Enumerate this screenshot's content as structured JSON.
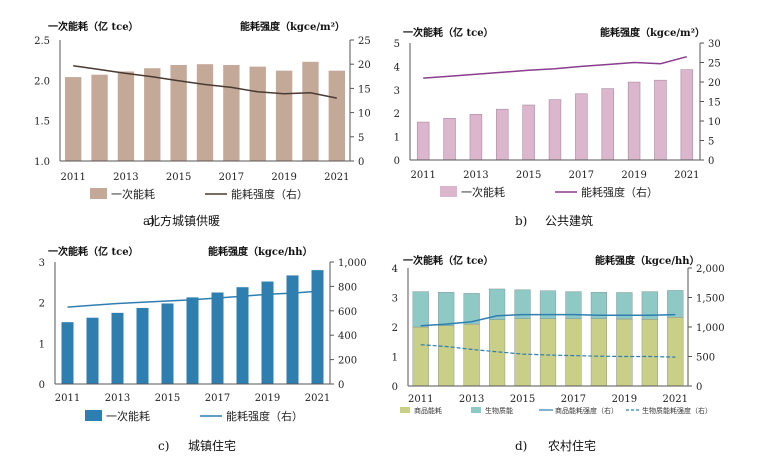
{
  "chart_data": [
    {
      "type": "bar",
      "id": "a",
      "caption_letter": "a)",
      "caption": "北方城镇供暖",
      "left_title": "一次能耗（亿 tce）",
      "right_title": "能耗强度（kgce/m²）",
      "categories": [
        "2011",
        "2012",
        "2013",
        "2014",
        "2015",
        "2016",
        "2017",
        "2018",
        "2019",
        "2020",
        "2021"
      ],
      "x_tick_labels": [
        "2011",
        "2013",
        "2015",
        "2017",
        "2019",
        "2021"
      ],
      "ylim": [
        1.0,
        2.5
      ],
      "y_ticks": [
        "1.0",
        "1.5",
        "2.0",
        "2.5"
      ],
      "y2lim": [
        0,
        25
      ],
      "y2_ticks": [
        "0",
        "5",
        "10",
        "15",
        "20",
        "25"
      ],
      "series": [
        {
          "name": "一次能耗",
          "kind": "bar",
          "axis": "left",
          "color": "#c4a898",
          "values": [
            2.04,
            2.07,
            2.11,
            2.15,
            2.19,
            2.2,
            2.19,
            2.17,
            2.12,
            2.23,
            2.12
          ]
        },
        {
          "name": "能耗强度（右）",
          "kind": "line",
          "axis": "right",
          "color": "#4a3b32",
          "values": [
            19.7,
            18.9,
            18.1,
            17.4,
            16.6,
            15.8,
            15.2,
            14.3,
            13.9,
            14.1,
            13.0
          ]
        }
      ],
      "legend": [
        "一次能耗",
        "能耗强度（右）"
      ]
    },
    {
      "type": "bar",
      "id": "b",
      "caption_letter": "b)",
      "caption": "公共建筑",
      "left_title": "一次能耗（亿 tce）",
      "right_title": "能耗强度（kgce/m²）",
      "categories": [
        "2011",
        "2012",
        "2013",
        "2014",
        "2015",
        "2016",
        "2017",
        "2018",
        "2019",
        "2020",
        "2021"
      ],
      "x_tick_labels": [
        "2011",
        "2013",
        "2015",
        "2017",
        "2019",
        "2021"
      ],
      "ylim": [
        0,
        5
      ],
      "y_ticks": [
        "0",
        "1",
        "2",
        "3",
        "4",
        "5"
      ],
      "y2lim": [
        0,
        30
      ],
      "y2_ticks": [
        "0",
        "5",
        "10",
        "15",
        "20",
        "25",
        "30"
      ],
      "series": [
        {
          "name": "一次能耗",
          "kind": "bar",
          "axis": "left",
          "color": "#dcb6cc",
          "values": [
            1.62,
            1.78,
            1.95,
            2.17,
            2.35,
            2.58,
            2.83,
            3.05,
            3.33,
            3.41,
            3.86
          ]
        },
        {
          "name": "能耗强度（右）",
          "kind": "line",
          "axis": "right",
          "color": "#8a3d8c",
          "values": [
            21.0,
            21.5,
            22.0,
            22.5,
            23.0,
            23.4,
            24.0,
            24.5,
            25.0,
            24.7,
            26.5
          ]
        }
      ],
      "legend": [
        "一次能耗",
        "能耗强度（右）"
      ]
    },
    {
      "type": "bar",
      "id": "c",
      "caption_letter": "c)",
      "caption": "城镇住宅",
      "left_title": "一次能耗（亿 tce）",
      "right_title": "能耗强度（kgce/hh）",
      "categories": [
        "2011",
        "2012",
        "2013",
        "2014",
        "2015",
        "2016",
        "2017",
        "2018",
        "2019",
        "2020",
        "2021"
      ],
      "x_tick_labels": [
        "2011",
        "2013",
        "2015",
        "2017",
        "2019",
        "2021"
      ],
      "ylim": [
        0,
        3
      ],
      "y_ticks": [
        "0",
        "1",
        "2",
        "3"
      ],
      "y2lim": [
        0,
        1000
      ],
      "y2_ticks": [
        "0",
        "200",
        "400",
        "600",
        "800",
        "1,000"
      ],
      "series": [
        {
          "name": "一次能耗",
          "kind": "bar",
          "axis": "left",
          "color": "#2e7fb0",
          "values": [
            1.52,
            1.63,
            1.75,
            1.87,
            1.98,
            2.13,
            2.25,
            2.38,
            2.52,
            2.67,
            2.8
          ]
        },
        {
          "name": "能耗强度（右）",
          "kind": "line",
          "axis": "right",
          "color": "#2e7fb0",
          "values": [
            630,
            645,
            660,
            670,
            680,
            690,
            705,
            720,
            735,
            745,
            760
          ]
        }
      ],
      "legend": [
        "一次能耗",
        "能耗强度（右）"
      ]
    },
    {
      "type": "bar",
      "id": "d",
      "caption_letter": "d)",
      "caption": "农村住宅",
      "left_title": "一次能耗（亿 tce）",
      "right_title": "能耗强度（kgce/hh）",
      "categories": [
        "2011",
        "2012",
        "2013",
        "2014",
        "2015",
        "2016",
        "2017",
        "2018",
        "2019",
        "2020",
        "2021"
      ],
      "x_tick_labels": [
        "2011",
        "2013",
        "2015",
        "2017",
        "2019",
        "2021"
      ],
      "ylim": [
        0,
        4
      ],
      "y_ticks": [
        "0",
        "1",
        "2",
        "3",
        "4"
      ],
      "y2lim": [
        0,
        2000
      ],
      "y2_ticks": [
        "0",
        "500",
        "1,000",
        "1,500",
        "2,000"
      ],
      "series": [
        {
          "name": "商品能耗",
          "kind": "stacked_bar",
          "axis": "left",
          "color": "#c9cf86",
          "values": [
            2.0,
            2.05,
            2.1,
            2.25,
            2.28,
            2.28,
            2.28,
            2.28,
            2.27,
            2.26,
            2.33
          ]
        },
        {
          "name": "生物质能",
          "kind": "stacked_bar",
          "axis": "left",
          "color": "#8ec9c6",
          "values": [
            1.2,
            1.13,
            1.04,
            1.04,
            0.98,
            0.95,
            0.92,
            0.9,
            0.9,
            0.94,
            0.91
          ]
        },
        {
          "name": "商品能耗强度（右）",
          "kind": "line",
          "axis": "right",
          "color": "#2e7fb0",
          "values": [
            1020,
            1050,
            1090,
            1190,
            1210,
            1210,
            1210,
            1200,
            1200,
            1200,
            1210
          ]
        },
        {
          "name": "生物质能耗强度（右）",
          "kind": "dashed_line",
          "axis": "right",
          "color": "#2e7fb0",
          "values": [
            700,
            670,
            620,
            580,
            540,
            525,
            515,
            505,
            500,
            500,
            490
          ]
        }
      ],
      "legend": [
        "商品能耗",
        "生物质能",
        "商品能耗强度（右）",
        "生物质能耗强度（右）"
      ]
    }
  ]
}
